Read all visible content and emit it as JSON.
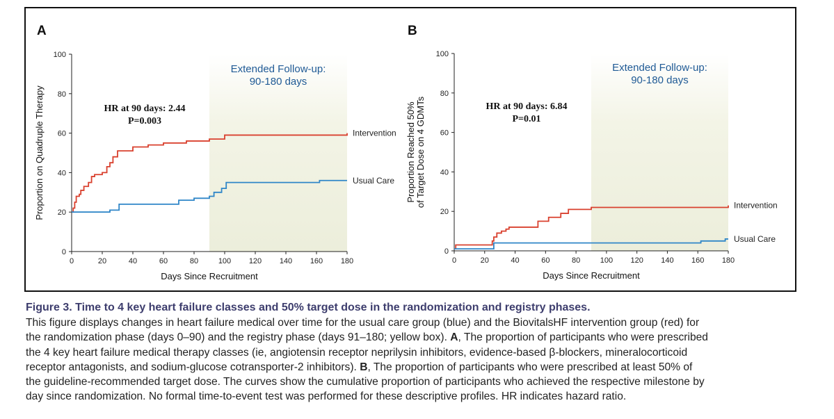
{
  "colors": {
    "intervention": "#d9402e",
    "usual_care": "#2f86c8",
    "extended_shade": "#eceedb",
    "ext_text": "#1f5a95"
  },
  "chart_data": [
    {
      "panel": "A",
      "type": "line",
      "xlabel": "Days Since Recruitment",
      "ylabel": "Proportion on Quadruple Therapy",
      "xlim": [
        0,
        180
      ],
      "ylim": [
        0,
        100
      ],
      "xticks": [
        0,
        20,
        40,
        60,
        80,
        100,
        120,
        140,
        160,
        180
      ],
      "yticks": [
        0,
        20,
        40,
        60,
        80,
        100
      ],
      "extended_followup": {
        "start": 90,
        "end": 180,
        "label_line1": "Extended Follow-up:",
        "label_line2": "90-180 days"
      },
      "annotation": {
        "line1": "HR at 90 days: 2.44",
        "line2": "P=0.003"
      },
      "series": [
        {
          "name": "Intervention",
          "points": [
            [
              0,
              20
            ],
            [
              1,
              22
            ],
            [
              2,
              25
            ],
            [
              3,
              28
            ],
            [
              5,
              29
            ],
            [
              6,
              31
            ],
            [
              8,
              33
            ],
            [
              11,
              35
            ],
            [
              13,
              38
            ],
            [
              15,
              39
            ],
            [
              20,
              40
            ],
            [
              23,
              43
            ],
            [
              25,
              45
            ],
            [
              27,
              48
            ],
            [
              30,
              51
            ],
            [
              40,
              53
            ],
            [
              50,
              54
            ],
            [
              60,
              55
            ],
            [
              75,
              56
            ],
            [
              90,
              57
            ],
            [
              100,
              59
            ],
            [
              180,
              60
            ]
          ]
        },
        {
          "name": "Usual Care",
          "points": [
            [
              0,
              20
            ],
            [
              25,
              21
            ],
            [
              31,
              24
            ],
            [
              70,
              26
            ],
            [
              80,
              27
            ],
            [
              90,
              28
            ],
            [
              93,
              30
            ],
            [
              98,
              32
            ],
            [
              101,
              35
            ],
            [
              162,
              36
            ],
            [
              180,
              36
            ]
          ]
        }
      ]
    },
    {
      "panel": "B",
      "type": "line",
      "xlabel": "Days Since Recruitment",
      "ylabel_line1": "Proportion Reached 50%",
      "ylabel_line2": "of Target Dose on 4 GDMTs",
      "xlim": [
        0,
        180
      ],
      "ylim": [
        0,
        100
      ],
      "xticks": [
        0,
        20,
        40,
        60,
        80,
        100,
        120,
        140,
        160,
        180
      ],
      "yticks": [
        0,
        20,
        40,
        60,
        80,
        100
      ],
      "extended_followup": {
        "start": 90,
        "end": 180,
        "label_line1": "Extended Follow-up:",
        "label_line2": "90-180 days"
      },
      "annotation": {
        "line1": "HR at 90 days: 6.84",
        "line2": "P=0.01"
      },
      "series": [
        {
          "name": "Intervention",
          "points": [
            [
              0,
              1
            ],
            [
              1,
              3
            ],
            [
              25,
              5
            ],
            [
              26,
              7
            ],
            [
              28,
              9
            ],
            [
              31,
              10
            ],
            [
              34,
              11
            ],
            [
              36,
              12
            ],
            [
              55,
              15
            ],
            [
              62,
              17
            ],
            [
              70,
              19
            ],
            [
              75,
              21
            ],
            [
              90,
              22
            ],
            [
              180,
              23
            ]
          ]
        },
        {
          "name": "Usual Care",
          "points": [
            [
              0,
              1
            ],
            [
              26,
              4
            ],
            [
              162,
              5
            ],
            [
              178,
              6
            ],
            [
              180,
              6
            ]
          ]
        }
      ]
    }
  ],
  "caption": {
    "title_bold": "Figure 3. Time to 4 key heart failure classes and 50% target dose in the randomization and registry phases.",
    "line1": "This figure displays changes in heart failure medical over time for the usual care group (blue) and the BiovitalsHF intervention group (red) for",
    "line2": "the randomization phase (days 0–90) and the registry phase (days 91–180; yellow box).",
    "line2_bold": "A",
    "line2_tail": ", The proportion of participants who were prescribed",
    "line3": "the 4 key heart failure medical therapy classes (ie, angiotensin receptor neprilysin inhibitors, evidence-based β-blockers, mineralocorticoid",
    "line4": "receptor antagonists, and sodium-glucose cotransporter-2 inhibitors).",
    "line4_bold": "B",
    "line4_tail": ", The proportion of participants who were prescribed at least 50% of",
    "line5": "the guideline-recommended target dose. The curves show the cumulative proportion of participants who achieved the respective milestone by",
    "line6": "day since randomization. No formal time-to-event test was performed for these descriptive profiles. HR indicates hazard ratio."
  }
}
